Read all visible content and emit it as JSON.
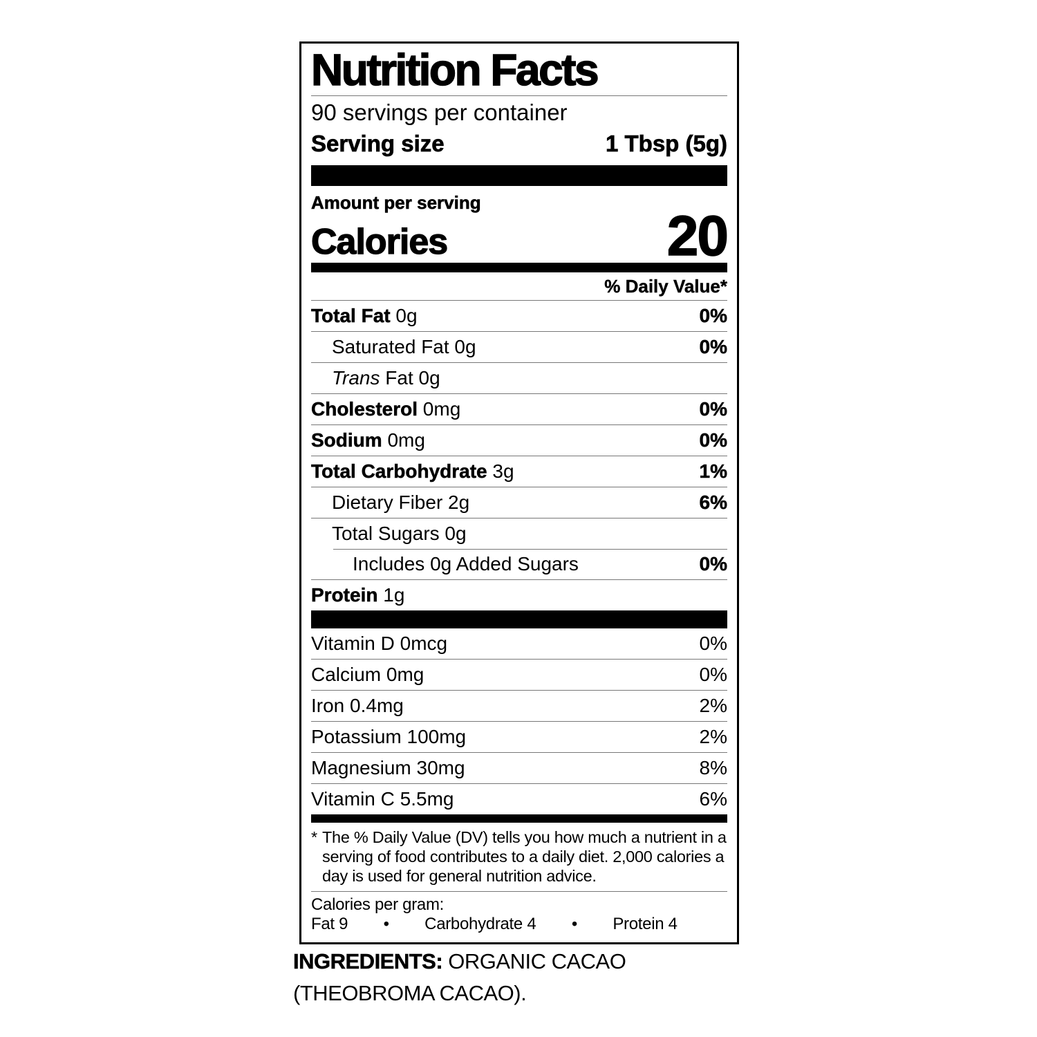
{
  "label": {
    "title": "Nutrition Facts",
    "servings_per_container": "90 servings per container",
    "serving_size_label": "Serving size",
    "serving_size_value": "1 Tbsp (5g)",
    "amount_per_serving": "Amount per serving",
    "calories_label": "Calories",
    "calories_value": "20",
    "daily_value_header": "% Daily Value*",
    "nutrients": [
      {
        "name": "Total Fat",
        "amount": "0g",
        "dv": "0%",
        "bold": true,
        "indent": 0
      },
      {
        "name": "Saturated Fat",
        "amount": "0g",
        "dv": "0%",
        "bold": false,
        "indent": 1
      },
      {
        "name": "Trans",
        "amount": "Fat 0g",
        "dv": "",
        "bold": false,
        "italic": true,
        "indent": 1
      },
      {
        "name": "Cholesterol",
        "amount": "0mg",
        "dv": "0%",
        "bold": true,
        "indent": 0
      },
      {
        "name": "Sodium",
        "amount": "0mg",
        "dv": "0%",
        "bold": true,
        "indent": 0
      },
      {
        "name": "Total Carbohydrate",
        "amount": "3g",
        "dv": "1%",
        "bold": true,
        "indent": 0
      },
      {
        "name": "Dietary Fiber",
        "amount": "2g",
        "dv": "6%",
        "bold": false,
        "indent": 1
      },
      {
        "name": "Total Sugars",
        "amount": "0g",
        "dv": "",
        "bold": false,
        "indent": 1
      },
      {
        "name": "Includes 0g Added Sugars",
        "amount": "",
        "dv": "0%",
        "bold": false,
        "indent": 2,
        "divider_indent": true
      },
      {
        "name": "Protein",
        "amount": "1g",
        "dv": "",
        "bold": true,
        "indent": 0
      }
    ],
    "vitamins": [
      {
        "name": "Vitamin D 0mcg",
        "dv": "0%"
      },
      {
        "name": "Calcium 0mg",
        "dv": "0%"
      },
      {
        "name": "Iron 0.4mg",
        "dv": "2%"
      },
      {
        "name": "Potassium 100mg",
        "dv": "2%"
      },
      {
        "name": "Magnesium 30mg",
        "dv": "8%"
      },
      {
        "name": "Vitamin C 5.5mg",
        "dv": "6%"
      }
    ],
    "footnote_marker": "*",
    "footnote": "The % Daily Value (DV) tells you how much a nutrient in a serving of food contributes to a daily diet. 2,000 calories a day is used for general nutrition advice.",
    "calories_per_gram": {
      "heading": "Calories per gram:",
      "bullet": "•",
      "items": [
        "Fat 9",
        "Carbohydrate 4",
        "Protein 4"
      ]
    },
    "colors": {
      "text": "#000000",
      "background": "#ffffff",
      "hairline": "#777777"
    }
  },
  "ingredients": {
    "label": "INGREDIENTS:",
    "text": " ORGANIC CACAO (THEOBROMA CACAO)."
  }
}
